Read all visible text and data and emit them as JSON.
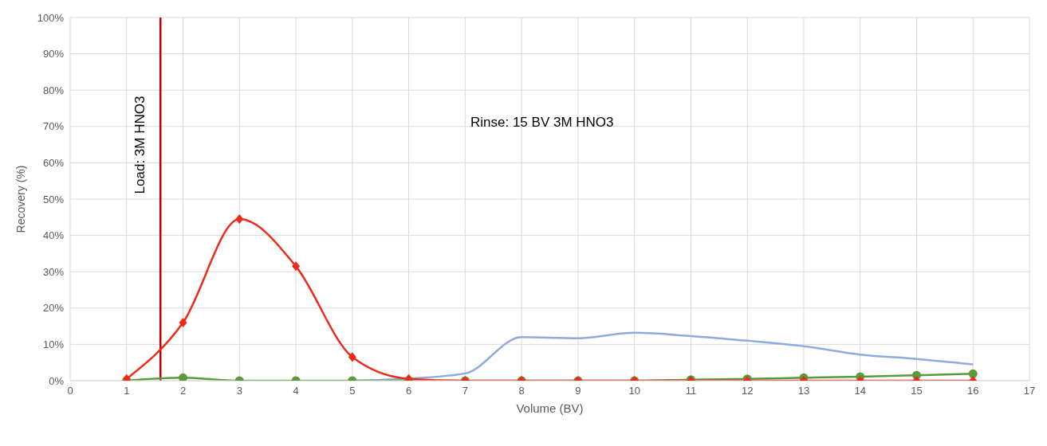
{
  "chart_data": {
    "type": "line",
    "xlabel": "Volume (BV)",
    "ylabel": "Recovery (%)",
    "x": [
      1,
      2,
      3,
      4,
      5,
      6,
      7,
      8,
      9,
      10,
      11,
      12,
      13,
      14,
      15,
      16
    ],
    "series": [
      {
        "color": "#8faadc",
        "marker": "none",
        "values": [
          null,
          null,
          null,
          null,
          0,
          0.6,
          2,
          12,
          11.7,
          13.2,
          12.3,
          11,
          9.5,
          7.2,
          6,
          4.5
        ]
      },
      {
        "color": "#5b9a3c",
        "marker": "circle",
        "values": [
          0,
          0.8,
          0,
          0,
          0,
          0,
          0,
          0,
          0,
          0,
          0.3,
          0.5,
          0.8,
          1.1,
          1.5,
          1.9
        ]
      },
      {
        "color": "#ee2a1a",
        "marker": "diamond",
        "values": [
          0.5,
          16,
          44.5,
          31.5,
          6.5,
          0.5,
          0,
          0,
          0,
          0,
          0,
          0,
          0,
          0,
          0,
          0
        ]
      }
    ],
    "xlim": [
      0,
      17
    ],
    "xticks": [
      0,
      1,
      2,
      3,
      4,
      5,
      6,
      7,
      8,
      9,
      10,
      11,
      12,
      13,
      14,
      15,
      16,
      17
    ],
    "ylim": [
      0,
      100
    ],
    "yticks": [
      {
        "value": 0,
        "label": "0%"
      },
      {
        "value": 10,
        "label": "10%"
      },
      {
        "value": 20,
        "label": "20%"
      },
      {
        "value": 30,
        "label": "30%"
      },
      {
        "value": 40,
        "label": "40%"
      },
      {
        "value": 50,
        "label": "50%"
      },
      {
        "value": 60,
        "label": "60%"
      },
      {
        "value": 70,
        "label": "70%"
      },
      {
        "value": 80,
        "label": "80%"
      },
      {
        "value": 90,
        "label": "90%"
      },
      {
        "value": 100,
        "label": "100%"
      }
    ],
    "ref_lines": [
      {
        "axis": "x",
        "value": 1.6,
        "color": "#c00000"
      }
    ],
    "annotations": [
      "Load: 3M HNO3",
      "Rinse: 15 BV 3M HNO3"
    ],
    "grid": true,
    "line_style": "solid"
  }
}
